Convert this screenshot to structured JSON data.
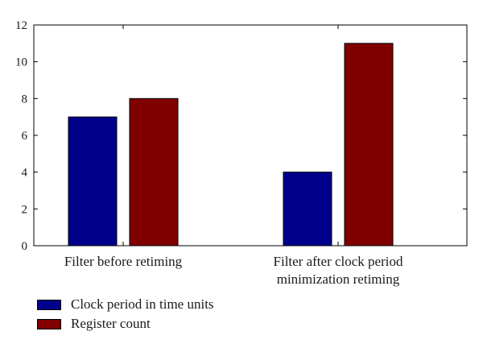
{
  "chart_data": {
    "type": "bar",
    "categories": [
      "Filter before retiming",
      "Filter after clock period\nminimization retiming"
    ],
    "series": [
      {
        "name": "Clock period in time units",
        "values": [
          7,
          4
        ],
        "color": "#00008b"
      },
      {
        "name": "Register count",
        "values": [
          8,
          11
        ],
        "color": "#800000"
      }
    ],
    "ylim": [
      0,
      12
    ],
    "yticks": [
      0,
      2,
      4,
      6,
      8,
      10,
      12
    ],
    "title": "",
    "xlabel": "",
    "ylabel": "",
    "legend_position": "bottom-left",
    "grid": false
  }
}
